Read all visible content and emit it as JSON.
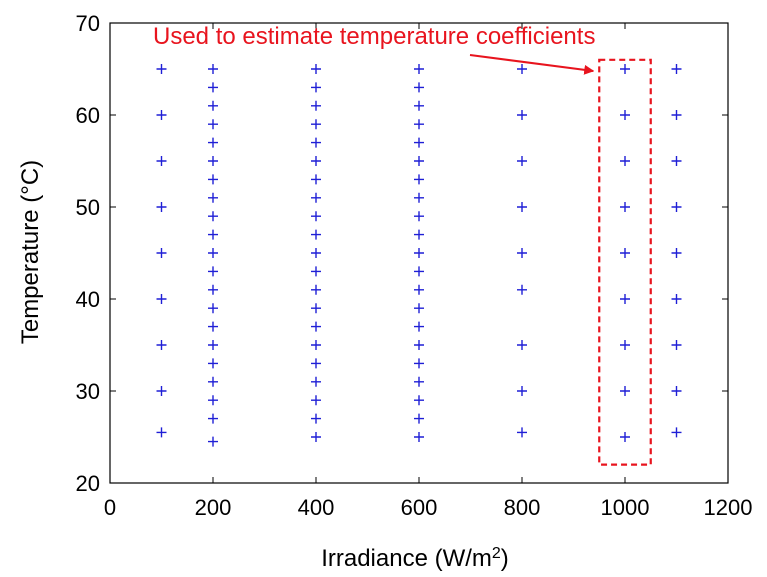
{
  "chart_data": {
    "type": "scatter",
    "title": "",
    "xlabel": "Irradiance (W/m",
    "xlabel_sup": "2",
    "xlabel_close": ")",
    "ylabel": "Temperature (°C)",
    "xlim": [
      0,
      1200
    ],
    "ylim": [
      20,
      70
    ],
    "xticks": [
      0,
      200,
      400,
      600,
      800,
      1000,
      1200
    ],
    "yticks": [
      20,
      30,
      40,
      50,
      60,
      70
    ],
    "grid": false,
    "marker": "plus",
    "marker_color": "#1f1fd6",
    "series": [
      {
        "points": [
          [
            100,
            65
          ],
          [
            100,
            60
          ],
          [
            100,
            55
          ],
          [
            100,
            50
          ],
          [
            100,
            45
          ],
          [
            100,
            40
          ],
          [
            100,
            35
          ],
          [
            100,
            30
          ],
          [
            100,
            25.5
          ],
          [
            200,
            65
          ],
          [
            200,
            63
          ],
          [
            200,
            61
          ],
          [
            200,
            59
          ],
          [
            200,
            57
          ],
          [
            200,
            55
          ],
          [
            200,
            53
          ],
          [
            200,
            51
          ],
          [
            200,
            49
          ],
          [
            200,
            47
          ],
          [
            200,
            45
          ],
          [
            200,
            43
          ],
          [
            200,
            41
          ],
          [
            200,
            39
          ],
          [
            200,
            37
          ],
          [
            200,
            35
          ],
          [
            200,
            33
          ],
          [
            200,
            31
          ],
          [
            200,
            29
          ],
          [
            200,
            27
          ],
          [
            200,
            24.5
          ],
          [
            400,
            65
          ],
          [
            400,
            63
          ],
          [
            400,
            61
          ],
          [
            400,
            59
          ],
          [
            400,
            57
          ],
          [
            400,
            55
          ],
          [
            400,
            53
          ],
          [
            400,
            51
          ],
          [
            400,
            49
          ],
          [
            400,
            47
          ],
          [
            400,
            45
          ],
          [
            400,
            43
          ],
          [
            400,
            41
          ],
          [
            400,
            39
          ],
          [
            400,
            37
          ],
          [
            400,
            35
          ],
          [
            400,
            33
          ],
          [
            400,
            31
          ],
          [
            400,
            29
          ],
          [
            400,
            27
          ],
          [
            400,
            25
          ],
          [
            600,
            65
          ],
          [
            600,
            63
          ],
          [
            600,
            61
          ],
          [
            600,
            59
          ],
          [
            600,
            57
          ],
          [
            600,
            55
          ],
          [
            600,
            53
          ],
          [
            600,
            51
          ],
          [
            600,
            49
          ],
          [
            600,
            47
          ],
          [
            600,
            45
          ],
          [
            600,
            43
          ],
          [
            600,
            41
          ],
          [
            600,
            39
          ],
          [
            600,
            37
          ],
          [
            600,
            35
          ],
          [
            600,
            33
          ],
          [
            600,
            31
          ],
          [
            600,
            29
          ],
          [
            600,
            27
          ],
          [
            600,
            25
          ],
          [
            800,
            65
          ],
          [
            800,
            60
          ],
          [
            800,
            55
          ],
          [
            800,
            50
          ],
          [
            800,
            45
          ],
          [
            800,
            41
          ],
          [
            800,
            35
          ],
          [
            800,
            30
          ],
          [
            800,
            25.5
          ],
          [
            1000,
            65
          ],
          [
            1000,
            60
          ],
          [
            1000,
            55
          ],
          [
            1000,
            50
          ],
          [
            1000,
            45
          ],
          [
            1000,
            40
          ],
          [
            1000,
            35
          ],
          [
            1000,
            30
          ],
          [
            1000,
            25
          ],
          [
            1100,
            65
          ],
          [
            1100,
            60
          ],
          [
            1100,
            55
          ],
          [
            1100,
            50
          ],
          [
            1100,
            45
          ],
          [
            1100,
            40
          ],
          [
            1100,
            35
          ],
          [
            1100,
            30
          ],
          [
            1100,
            25.5
          ]
        ]
      }
    ],
    "annotation": {
      "text": "Used to estimate temperature coefficients",
      "color": "#e8141e",
      "box_x": [
        950,
        1050
      ],
      "box_y": [
        22,
        66
      ],
      "arrow_to": [
        950,
        65
      ]
    }
  }
}
